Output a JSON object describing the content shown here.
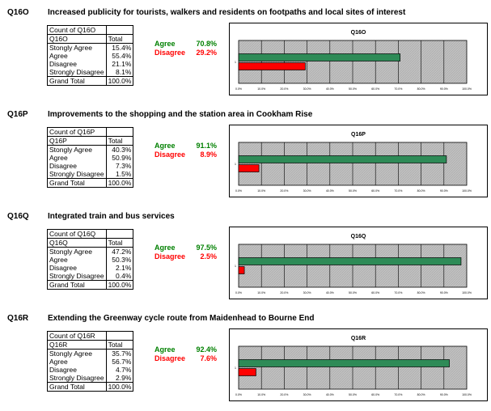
{
  "colors": {
    "agree": "#2e8b57",
    "disagree": "#ff0000",
    "plot_bg": "#c0c0c0",
    "agree_text": "#008000"
  },
  "summary_labels": {
    "agree": "Agree",
    "disagree": "Disagree"
  },
  "table_labels": {
    "count_of": "Count of",
    "total": "Total",
    "grand_total": "Grand Total"
  },
  "response_labels": [
    "Stongly Agree",
    "Agree",
    "Disagree",
    "Strongly Disagree"
  ],
  "questions": [
    {
      "id": "Q16O",
      "title": "Increased publicity for tourists, walkers and residents on footpaths and local sites of interest",
      "count_header": "Count of Q16O",
      "row_header": "Q16O",
      "values": [
        "15.4%",
        "55.4%",
        "21.1%",
        "8.1%"
      ],
      "grand_total": "100.0%",
      "agree": "70.8%",
      "disagree": "29.2%"
    },
    {
      "id": "Q16P",
      "title": "Improvements to the shopping and the station area in Cookham Rise",
      "count_header": "Count of Q16P",
      "row_header": "Q16P",
      "values": [
        "40.3%",
        "50.9%",
        "7.3%",
        "1.5%"
      ],
      "grand_total": "100.0%",
      "agree": "91.1%",
      "disagree": "8.9%"
    },
    {
      "id": "Q16Q",
      "title": "Integrated train and bus services",
      "count_header": "Count of Q16Q",
      "row_header": "Q16Q",
      "values": [
        "47.2%",
        "50.3%",
        "2.1%",
        "0.4%"
      ],
      "grand_total": "100.0%",
      "agree": "97.5%",
      "disagree": "2.5%"
    },
    {
      "id": "Q16R",
      "title": "Extending the Greenway cycle route from Maidenhead to Bourne End",
      "count_header": "Count of Q16R",
      "row_header": "Q16R",
      "values": [
        "35.7%",
        "56.7%",
        "4.7%",
        "2.9%"
      ],
      "grand_total": "100.0%",
      "agree": "92.4%",
      "disagree": "7.6%"
    }
  ],
  "chart_data": [
    {
      "type": "bar",
      "orientation": "horizontal",
      "title": "Q16O",
      "categories": [
        "1"
      ],
      "series": [
        {
          "name": "Agree",
          "values": [
            70.8
          ]
        },
        {
          "name": "Disagree",
          "values": [
            29.2
          ]
        }
      ],
      "xlim": [
        0,
        100
      ],
      "xticks": [
        "0.0%",
        "10.0%",
        "20.0%",
        "30.0%",
        "40.0%",
        "50.0%",
        "60.0%",
        "70.0%",
        "80.0%",
        "90.0%",
        "100.0%"
      ],
      "grid": true
    },
    {
      "type": "bar",
      "orientation": "horizontal",
      "title": "Q16P",
      "categories": [
        "1"
      ],
      "series": [
        {
          "name": "Agree",
          "values": [
            91.1
          ]
        },
        {
          "name": "Disagree",
          "values": [
            8.9
          ]
        }
      ],
      "xlim": [
        0,
        100
      ],
      "xticks": [
        "0.0%",
        "10.0%",
        "20.0%",
        "30.0%",
        "40.0%",
        "50.0%",
        "60.0%",
        "70.0%",
        "80.0%",
        "90.0%",
        "100.0%"
      ],
      "grid": true
    },
    {
      "type": "bar",
      "orientation": "horizontal",
      "title": "Q16Q",
      "categories": [
        "1"
      ],
      "series": [
        {
          "name": "Agree",
          "values": [
            97.5
          ]
        },
        {
          "name": "Disagree",
          "values": [
            2.5
          ]
        }
      ],
      "xlim": [
        0,
        100
      ],
      "xticks": [
        "0.0%",
        "10.0%",
        "20.0%",
        "30.0%",
        "40.0%",
        "50.0%",
        "60.0%",
        "70.0%",
        "80.0%",
        "90.0%",
        "100.0%"
      ],
      "grid": true
    },
    {
      "type": "bar",
      "orientation": "horizontal",
      "title": "Q16R",
      "categories": [
        "1"
      ],
      "series": [
        {
          "name": "Agree",
          "values": [
            92.4
          ]
        },
        {
          "name": "Disagree",
          "values": [
            7.6
          ]
        }
      ],
      "xlim": [
        0,
        100
      ],
      "xticks": [
        "0.0%",
        "10.0%",
        "20.0%",
        "30.0%",
        "40.0%",
        "50.0%",
        "60.0%",
        "70.0%",
        "80.0%",
        "90.0%",
        "100.0%"
      ],
      "grid": true
    }
  ]
}
